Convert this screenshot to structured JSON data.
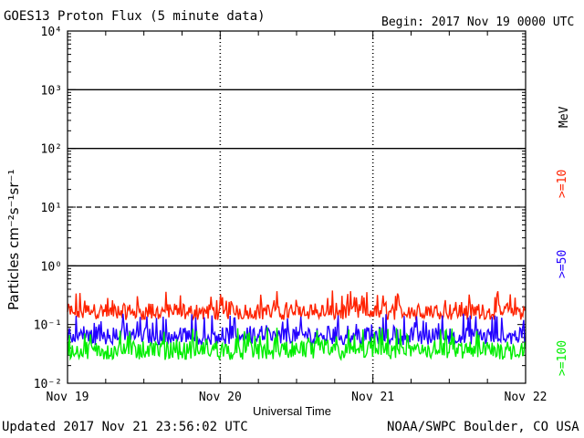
{
  "header": {
    "title": "GOES13 Proton Flux (5 minute data)",
    "begin": "Begin: 2017 Nov 19 0000 UTC"
  },
  "footer": {
    "updated": "Updated 2017 Nov 21 23:56:02 UTC",
    "credit": "NOAA/SWPC Boulder, CO USA"
  },
  "axis": {
    "ylabel": "Particles cm⁻²s⁻¹sr⁻¹",
    "xlabel": "Universal Time",
    "unit": "MeV"
  },
  "colors": {
    "ge10": "#ff2200",
    "ge50": "#2200ff",
    "ge100": "#00ee00"
  },
  "chart_data": {
    "type": "line",
    "title": "GOES13 Proton Flux (5 minute data)",
    "xlabel": "Universal Time",
    "ylabel": "Particles cm-2 s-1 sr-1",
    "yscale": "log",
    "ylim": [
      0.01,
      10000
    ],
    "ytick_labels": [
      "10⁻²",
      "10⁻¹",
      "10⁰",
      "10¹",
      "10²",
      "10³",
      "10⁴"
    ],
    "xlim": [
      "2017-11-19",
      "2017-11-22"
    ],
    "xtick_labels": [
      "Nov 19",
      "Nov 20",
      "Nov 21",
      "Nov 22"
    ],
    "grid": true,
    "threshold_lines": [
      1,
      10,
      100,
      1000
    ],
    "series": [
      {
        "name": ">=10",
        "color": "#ff2200",
        "typical": 0.18,
        "range": [
          0.12,
          0.38
        ]
      },
      {
        "name": ">=50",
        "color": "#2200ff",
        "typical": 0.07,
        "range": [
          0.045,
          0.16
        ]
      },
      {
        "name": ">=100",
        "color": "#00ee00",
        "typical": 0.04,
        "range": [
          0.025,
          0.09
        ]
      }
    ]
  }
}
